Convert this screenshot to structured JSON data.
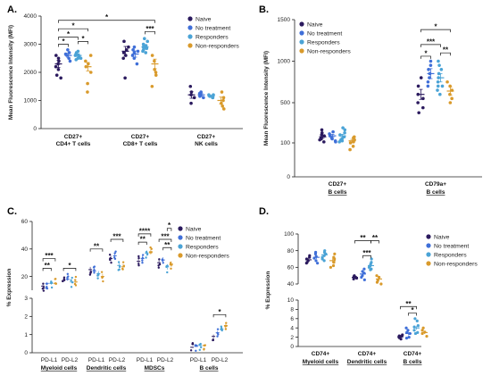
{
  "colors": {
    "naive": "#2b1a5e",
    "no_treatment": "#3f6fd8",
    "responders": "#4aa3d6",
    "non_responders": "#d99a2b"
  },
  "chart_data": [
    {
      "panel": "A.",
      "type": "scatter",
      "ylabel": "Mean Fluorescence Intensity (MFI)",
      "ylim": [
        0,
        4000
      ],
      "yticks": [
        "0",
        "1000",
        "2000",
        "3000",
        "4000"
      ],
      "legend_position": "top-right",
      "legend": [
        "Naive",
        "No treatment",
        "Responders",
        "Non-responders"
      ],
      "categories": [
        {
          "line1": "CD27+",
          "line2": "CD4+ T cells"
        },
        {
          "line1": "CD27+",
          "line2": "CD8+ T cells"
        },
        {
          "line1": "CD27+",
          "line2": "NK cells"
        }
      ],
      "series": [
        {
          "name": "Naive",
          "means": [
            2300,
            2750,
            1200
          ],
          "sem": [
            130,
            170,
            120
          ],
          "points": [
            [
              2100,
              2400,
              2600,
              1900,
              2300,
              2500,
              2200,
              1800
            ],
            [
              2800,
              3100,
              2500,
              2900,
              1800,
              2700,
              2600
            ],
            [
              1100,
              1500,
              900,
              1300,
              1200
            ]
          ]
        },
        {
          "name": "No treatment",
          "means": [
            2600,
            2650,
            1200
          ],
          "sem": [
            80,
            110,
            60
          ],
          "points": [
            [
              2500,
              2800,
              2600,
              2400,
              2700,
              2650
            ],
            [
              2500,
              2800,
              2300,
              2900,
              2700,
              2600,
              2750
            ],
            [
              1100,
              1300,
              1200,
              1150,
              1250
            ]
          ]
        },
        {
          "name": "Responders",
          "means": [
            2600,
            2900,
            1150
          ],
          "sem": [
            60,
            80,
            40
          ],
          "points": [
            [
              2500,
              2700,
              2550,
              2650,
              2600,
              2750,
              2450,
              2600,
              2500
            ],
            [
              2800,
              3100,
              2900,
              3000,
              2700,
              3200,
              2850,
              2950,
              2750,
              2900
            ],
            [
              1100,
              1200,
              1150,
              1100,
              1200
            ]
          ]
        },
        {
          "name": "Non-responders",
          "means": [
            2200,
            2300,
            1000
          ],
          "sem": [
            150,
            170,
            120
          ],
          "points": [
            [
              2000,
              2400,
              1600,
              2600,
              2200,
              1300,
              2300
            ],
            [
              2100,
              2600,
              1500,
              2400,
              1900,
              2000
            ],
            [
              700,
              1100,
              1000,
              800,
              1300,
              900
            ]
          ]
        }
      ],
      "significance": [
        "*",
        "*",
        "*",
        "*",
        "*",
        "***"
      ]
    },
    {
      "panel": "B.",
      "type": "scatter",
      "ylabel": "Mean Fluorescence Intensity (MFI)",
      "yscale": "log",
      "ylim": [
        0,
        1500
      ],
      "yticks": [
        "0",
        "100",
        "500",
        "1000",
        "1500"
      ],
      "legend_position": "top-left",
      "legend": [
        "Naive",
        "No treatment",
        "Responders",
        "Non-responders"
      ],
      "categories": [
        {
          "line1": "CD27+",
          "line2": "B cells"
        },
        {
          "line1": "CD79a+",
          "line2": "B cells"
        }
      ],
      "series": [
        {
          "name": "Naive",
          "means": [
            160,
            600
          ],
          "sem": [
            15,
            60
          ],
          "points": [
            [
              130,
              180,
              230,
              150,
              200,
              110,
              170,
              140
            ],
            [
              400,
              600,
              700,
              500,
              800,
              450,
              550
            ]
          ]
        },
        {
          "name": "No treatment",
          "means": [
            170,
            850
          ],
          "sem": [
            15,
            60
          ],
          "points": [
            [
              120,
              190,
              150,
              210,
              140,
              170,
              110
            ],
            [
              900,
              1000,
              700,
              800,
              950,
              750,
              850
            ]
          ]
        },
        {
          "name": "Responders",
          "means": [
            170,
            800
          ],
          "sem": [
            15,
            50
          ],
          "points": [
            [
              140,
              200,
              250,
              120,
              180,
              160,
              230,
              130,
              110
            ],
            [
              850,
              950,
              700,
              1000,
              800,
              650,
              900,
              750,
              600,
              700
            ]
          ]
        },
        {
          "name": "Non-responders",
          "means": [
            120,
            640
          ],
          "sem": [
            15,
            50
          ],
          "points": [
            [
              80,
              110,
              150,
              90,
              130,
              100,
              160
            ],
            [
              500,
              600,
              750,
              650,
              700,
              550
            ]
          ]
        }
      ],
      "significance": [
        "*",
        "***",
        "**",
        "*"
      ]
    },
    {
      "panel": "C.",
      "type": "scatter",
      "ylabel": "% Expression",
      "ylim": [
        0,
        60
      ],
      "yticks": [
        "0",
        "1",
        "2",
        "3",
        "20",
        "40",
        "60"
      ],
      "legend_position": "top-right",
      "legend": [
        "Naive",
        "No treatment",
        "Responders",
        "Non-responders"
      ],
      "categories": [
        "PD-L1",
        "PD-L2",
        "PD-L1",
        "PD-L2",
        "PD-L1",
        "PD-L2",
        "PD-L1",
        "PD-L2"
      ],
      "groups": [
        "Myeloid cells",
        "Dendritic cells",
        "MDSCs",
        "B cells"
      ],
      "series": [
        {
          "name": "Naive",
          "means": [
            13,
            17,
            25,
            33,
            31,
            30,
            0.3,
            0.9
          ],
          "sem": [
            1,
            1,
            2,
            2,
            2,
            2,
            0.03,
            0.1
          ]
        },
        {
          "name": "No treatment",
          "means": [
            15,
            18,
            24,
            35,
            33,
            32,
            0.35,
            1.1
          ],
          "sem": [
            1,
            1,
            2,
            2,
            2,
            2,
            0.03,
            0.1
          ]
        },
        {
          "name": "Responders",
          "means": [
            15,
            16,
            22,
            28,
            37,
            27,
            0.4,
            1.3
          ],
          "sem": [
            1,
            1,
            2,
            2,
            2,
            2,
            0.04,
            0.1
          ]
        },
        {
          "name": "Non-responders",
          "means": [
            15,
            16,
            20,
            27,
            38,
            29,
            0.4,
            1.5
          ],
          "sem": [
            1,
            1,
            2,
            2,
            2,
            2,
            0.05,
            0.15
          ]
        }
      ],
      "significance": [
        "**",
        "***",
        "*",
        "**",
        "***",
        "****",
        "**",
        "***",
        "**",
        "*",
        "*"
      ]
    },
    {
      "panel": "D.",
      "type": "scatter",
      "ylabel": "% Expression",
      "ylim": [
        0,
        100
      ],
      "yticks": [
        "0",
        "2",
        "4",
        "6",
        "8",
        "10",
        "40",
        "60",
        "80",
        "100"
      ],
      "legend_position": "top-right",
      "legend": [
        "Naive",
        "No treatment",
        "Responders",
        "Non-responders"
      ],
      "categories": [
        {
          "line1": "CD74+",
          "line2": "Myeloid cells"
        },
        {
          "line1": "CD74+",
          "line2": "Dendritic cells"
        },
        {
          "line1": "CD74+",
          "line2": "B cells"
        }
      ],
      "series": [
        {
          "name": "Naive",
          "means": [
            69,
            48,
            2.1
          ],
          "sem": [
            2,
            1,
            0.2
          ],
          "points": [
            [
              66,
              72,
              70,
              68,
              74,
              65
            ],
            [
              46,
              49,
              50,
              47,
              48
            ],
            [
              1.6,
              2.3,
              2.0,
              2.5,
              1.9,
              2.2
            ]
          ]
        },
        {
          "name": "No treatment",
          "means": [
            72,
            52,
            2.8
          ],
          "sem": [
            2,
            2,
            0.4
          ],
          "points": [
            [
              68,
              76,
              71,
              73,
              65,
              78
            ],
            [
              45,
              55,
              50,
              58,
              48,
              53
            ],
            [
              2.0,
              3.5,
              2.8,
              1.8,
              3.0,
              4.0
            ]
          ]
        },
        {
          "name": "Responders",
          "means": [
            75,
            62,
            4.0
          ],
          "sem": [
            2,
            2,
            0.4
          ],
          "points": [
            [
              70,
              78,
              74,
              80,
              72,
              76,
              68
            ],
            [
              58,
              66,
              62,
              70,
              60,
              64,
              57
            ],
            [
              3.0,
              4.5,
              5.5,
              3.5,
              4.2,
              6.0,
              2.8
            ]
          ]
        },
        {
          "name": "Non-responders",
          "means": [
            68,
            46,
            3.0
          ],
          "sem": [
            3,
            2,
            0.3
          ],
          "points": [
            [
              62,
              72,
              60,
              76,
              66,
              70
            ],
            [
              42,
              48,
              44,
              50,
              40
            ],
            [
              2.2,
              3.5,
              2.8,
              4.0,
              3.1
            ]
          ]
        }
      ],
      "significance": [
        "**",
        "***",
        "**",
        "**",
        "*"
      ]
    }
  ]
}
